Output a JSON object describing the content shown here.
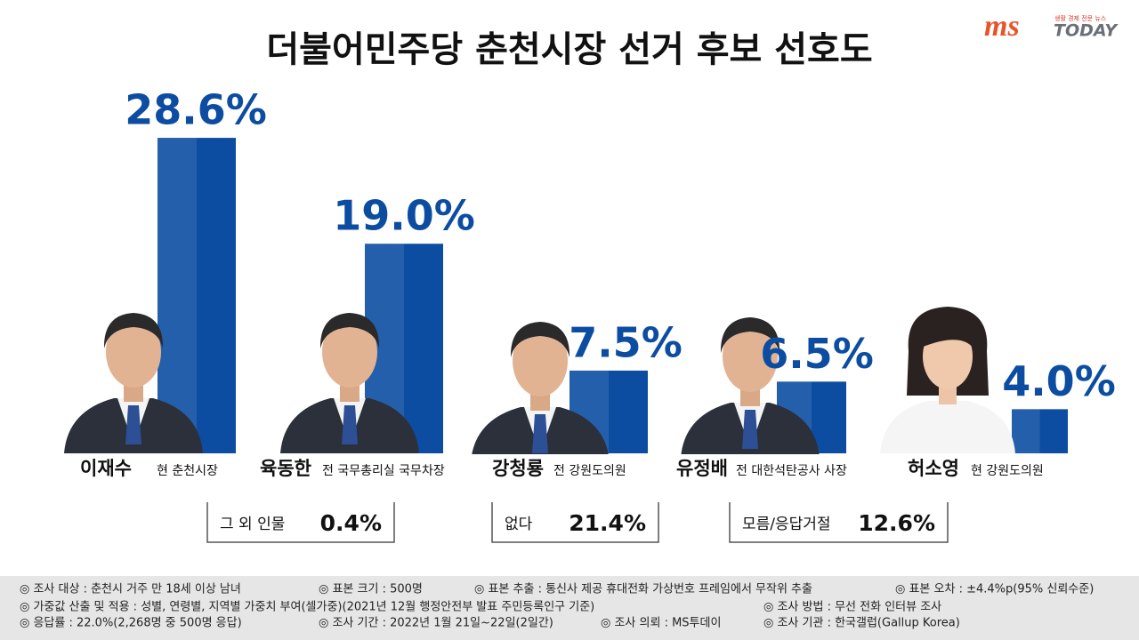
{
  "chart_data": {
    "type": "bar",
    "title": "더불어민주당 춘천시장 선거 후보 선호도",
    "categories": [
      "이재수",
      "육동한",
      "강청룡",
      "유정배",
      "허소영"
    ],
    "descriptions": [
      "현 춘천시장",
      "전 국무총리실 국무차장",
      "전 강원도의원",
      "전 대한석탄공사 사장",
      "현 강원도의원"
    ],
    "values": [
      28.6,
      19.0,
      7.5,
      6.5,
      4.0
    ],
    "value_labels": [
      "28.6%",
      "19.0%",
      "7.5%",
      "6.5%",
      "4.0%"
    ],
    "color": "#0c4da2",
    "others": {
      "labels": [
        "그 외 인물",
        "없다",
        "모름/응답거절"
      ],
      "values": [
        0.4,
        21.4,
        12.6
      ],
      "value_labels": [
        "0.4%",
        "21.4%",
        "12.6%"
      ]
    }
  },
  "logo": {
    "brand": "ms",
    "tagline": "생활 경제 전문 뉴스",
    "name": "TODAY"
  },
  "notes": [
    "◎ 조사 대상 : 춘천시 거주 만 18세 이상 남녀",
    "◎ 표본 크기 : 500명",
    "◎ 표본 추출 : 통신사 제공 휴대전화 가상번호 프레임에서 무작위 추출",
    "◎ 표본 오차 : ±4.4%p(95% 신뢰수준)",
    "◎ 가중값 산출 및 적용 : 성별, 연령별, 지역별 가중치 부여(셀가중)(2021년 12월 행정안전부 발표 주민등록인구 기준)",
    "◎ 조사 방법 : 무선 전화 인터뷰 조사",
    "◎ 응답률 : 22.0%(2,268명 중 500명 응답)",
    "◎ 조사 기간 : 2022년 1월 21일~22일(2일간)",
    "◎ 조사 의뢰 : MS투데이",
    "◎ 조사 기관 : 한국갤럽(Gallup Korea)"
  ]
}
